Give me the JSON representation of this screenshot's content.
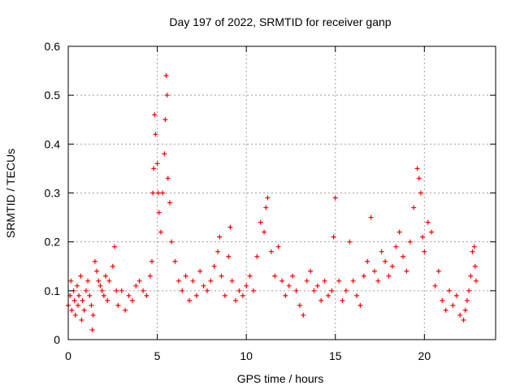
{
  "chart_data": {
    "type": "scatter",
    "title": "Day 197 of 2022, SRMTID for receiver ganp",
    "xlabel": "GPS time / hours",
    "ylabel": "SRMTID / TECUs",
    "xlim": [
      0,
      24
    ],
    "ylim": [
      0,
      0.6
    ],
    "xticks": [
      0,
      5,
      10,
      15,
      20
    ],
    "xtick_labels": [
      "0",
      "5",
      "10",
      "15",
      "20"
    ],
    "yticks": [
      0,
      0.1,
      0.2,
      0.3,
      0.4,
      0.5,
      0.6
    ],
    "ytick_labels": [
      "0",
      "0.1",
      "0.2",
      "0.3",
      "0.4",
      "0.5",
      "0.6"
    ],
    "grid": true,
    "marker": "+",
    "marker_color": "#ff0000",
    "series": [
      {
        "name": "SRMTID",
        "points": [
          [
            0.0,
            0.07
          ],
          [
            0.1,
            0.09
          ],
          [
            0.15,
            0.12
          ],
          [
            0.2,
            0.06
          ],
          [
            0.3,
            0.1
          ],
          [
            0.35,
            0.08
          ],
          [
            0.4,
            0.05
          ],
          [
            0.5,
            0.11
          ],
          [
            0.55,
            0.07
          ],
          [
            0.6,
            0.09
          ],
          [
            0.7,
            0.13
          ],
          [
            0.75,
            0.04
          ],
          [
            0.8,
            0.08
          ],
          [
            0.9,
            0.06
          ],
          [
            1.0,
            0.1
          ],
          [
            1.1,
            0.12
          ],
          [
            1.2,
            0.09
          ],
          [
            1.3,
            0.07
          ],
          [
            1.35,
            0.02
          ],
          [
            1.4,
            0.05
          ],
          [
            1.5,
            0.16
          ],
          [
            1.6,
            0.14
          ],
          [
            1.7,
            0.12
          ],
          [
            1.8,
            0.11
          ],
          [
            1.9,
            0.1
          ],
          [
            2.0,
            0.09
          ],
          [
            2.1,
            0.13
          ],
          [
            2.2,
            0.08
          ],
          [
            2.3,
            0.12
          ],
          [
            2.5,
            0.15
          ],
          [
            2.6,
            0.19
          ],
          [
            2.7,
            0.1
          ],
          [
            2.8,
            0.07
          ],
          [
            3.0,
            0.1
          ],
          [
            3.2,
            0.06
          ],
          [
            3.4,
            0.09
          ],
          [
            3.6,
            0.08
          ],
          [
            3.8,
            0.11
          ],
          [
            4.0,
            0.12
          ],
          [
            4.2,
            0.1
          ],
          [
            4.4,
            0.09
          ],
          [
            4.6,
            0.13
          ],
          [
            4.7,
            0.16
          ],
          [
            4.75,
            0.3
          ],
          [
            4.8,
            0.35
          ],
          [
            4.85,
            0.46
          ],
          [
            4.9,
            0.42
          ],
          [
            5.0,
            0.36
          ],
          [
            5.05,
            0.3
          ],
          [
            5.1,
            0.26
          ],
          [
            5.2,
            0.22
          ],
          [
            5.3,
            0.3
          ],
          [
            5.4,
            0.38
          ],
          [
            5.45,
            0.45
          ],
          [
            5.5,
            0.54
          ],
          [
            5.55,
            0.5
          ],
          [
            5.6,
            0.33
          ],
          [
            5.7,
            0.28
          ],
          [
            5.8,
            0.2
          ],
          [
            6.0,
            0.16
          ],
          [
            6.2,
            0.12
          ],
          [
            6.4,
            0.1
          ],
          [
            6.6,
            0.13
          ],
          [
            6.8,
            0.08
          ],
          [
            7.0,
            0.12
          ],
          [
            7.2,
            0.09
          ],
          [
            7.4,
            0.14
          ],
          [
            7.6,
            0.11
          ],
          [
            7.8,
            0.1
          ],
          [
            8.0,
            0.12
          ],
          [
            8.2,
            0.15
          ],
          [
            8.4,
            0.18
          ],
          [
            8.5,
            0.21
          ],
          [
            8.6,
            0.13
          ],
          [
            8.8,
            0.09
          ],
          [
            9.0,
            0.17
          ],
          [
            9.1,
            0.23
          ],
          [
            9.2,
            0.12
          ],
          [
            9.4,
            0.08
          ],
          [
            9.6,
            0.1
          ],
          [
            9.8,
            0.09
          ],
          [
            10.0,
            0.11
          ],
          [
            10.2,
            0.13
          ],
          [
            10.4,
            0.1
          ],
          [
            10.6,
            0.17
          ],
          [
            10.8,
            0.24
          ],
          [
            11.0,
            0.22
          ],
          [
            11.1,
            0.27
          ],
          [
            11.2,
            0.29
          ],
          [
            11.4,
            0.18
          ],
          [
            11.6,
            0.13
          ],
          [
            11.8,
            0.19
          ],
          [
            12.0,
            0.12
          ],
          [
            12.2,
            0.09
          ],
          [
            12.4,
            0.11
          ],
          [
            12.6,
            0.13
          ],
          [
            12.8,
            0.1
          ],
          [
            13.0,
            0.07
          ],
          [
            13.2,
            0.05
          ],
          [
            13.4,
            0.12
          ],
          [
            13.6,
            0.14
          ],
          [
            13.8,
            0.1
          ],
          [
            14.0,
            0.11
          ],
          [
            14.2,
            0.08
          ],
          [
            14.4,
            0.12
          ],
          [
            14.6,
            0.09
          ],
          [
            14.8,
            0.1
          ],
          [
            14.9,
            0.21
          ],
          [
            15.0,
            0.29
          ],
          [
            15.2,
            0.12
          ],
          [
            15.4,
            0.08
          ],
          [
            15.6,
            0.1
          ],
          [
            15.8,
            0.2
          ],
          [
            16.0,
            0.12
          ],
          [
            16.2,
            0.09
          ],
          [
            16.4,
            0.07
          ],
          [
            16.6,
            0.13
          ],
          [
            16.8,
            0.16
          ],
          [
            17.0,
            0.25
          ],
          [
            17.2,
            0.14
          ],
          [
            17.4,
            0.12
          ],
          [
            17.6,
            0.18
          ],
          [
            17.8,
            0.16
          ],
          [
            18.0,
            0.13
          ],
          [
            18.2,
            0.15
          ],
          [
            18.4,
            0.19
          ],
          [
            18.6,
            0.22
          ],
          [
            18.8,
            0.17
          ],
          [
            19.0,
            0.14
          ],
          [
            19.2,
            0.2
          ],
          [
            19.4,
            0.27
          ],
          [
            19.6,
            0.35
          ],
          [
            19.7,
            0.33
          ],
          [
            19.8,
            0.3
          ],
          [
            19.9,
            0.21
          ],
          [
            20.0,
            0.18
          ],
          [
            20.2,
            0.24
          ],
          [
            20.4,
            0.22
          ],
          [
            20.6,
            0.11
          ],
          [
            20.8,
            0.14
          ],
          [
            21.0,
            0.08
          ],
          [
            21.2,
            0.06
          ],
          [
            21.4,
            0.1
          ],
          [
            21.6,
            0.07
          ],
          [
            21.8,
            0.09
          ],
          [
            22.0,
            0.05
          ],
          [
            22.2,
            0.04
          ],
          [
            22.3,
            0.06
          ],
          [
            22.4,
            0.08
          ],
          [
            22.5,
            0.1
          ],
          [
            22.6,
            0.13
          ],
          [
            22.7,
            0.18
          ],
          [
            22.8,
            0.19
          ],
          [
            22.85,
            0.15
          ],
          [
            22.9,
            0.12
          ]
        ]
      }
    ]
  }
}
